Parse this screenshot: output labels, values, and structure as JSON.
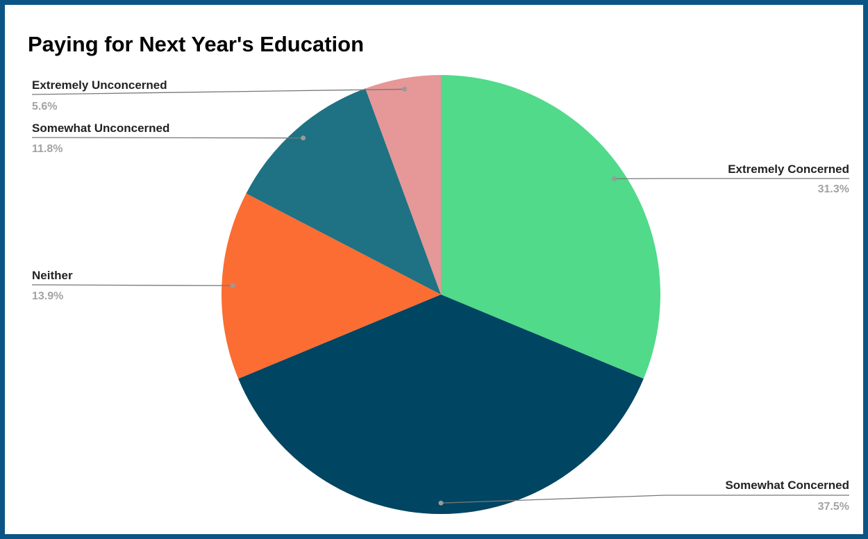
{
  "chart_data": {
    "type": "pie",
    "title": "Paying for Next Year's Education",
    "slices": [
      {
        "label": "Extremely Concerned",
        "value": 31.3,
        "value_label": "31.3%",
        "color": "#51da8a"
      },
      {
        "label": "Somewhat Concerned",
        "value": 37.5,
        "value_label": "37.5%",
        "color": "#004562"
      },
      {
        "label": "Neither",
        "value": 13.9,
        "value_label": "13.9%",
        "color": "#fb6d33"
      },
      {
        "label": "Somewhat Unconcerned",
        "value": 11.8,
        "value_label": "11.8%",
        "color": "#1e7283"
      },
      {
        "label": "Extremely Unconcerned",
        "value": 5.6,
        "value_label": "5.6%",
        "color": "#e69797"
      }
    ],
    "start_angle": "top",
    "direction": "clockwise",
    "legend": "none",
    "labels": "outside with leader lines"
  },
  "colors": {
    "frame_border": "#0b5584",
    "background": "#ffffff"
  }
}
